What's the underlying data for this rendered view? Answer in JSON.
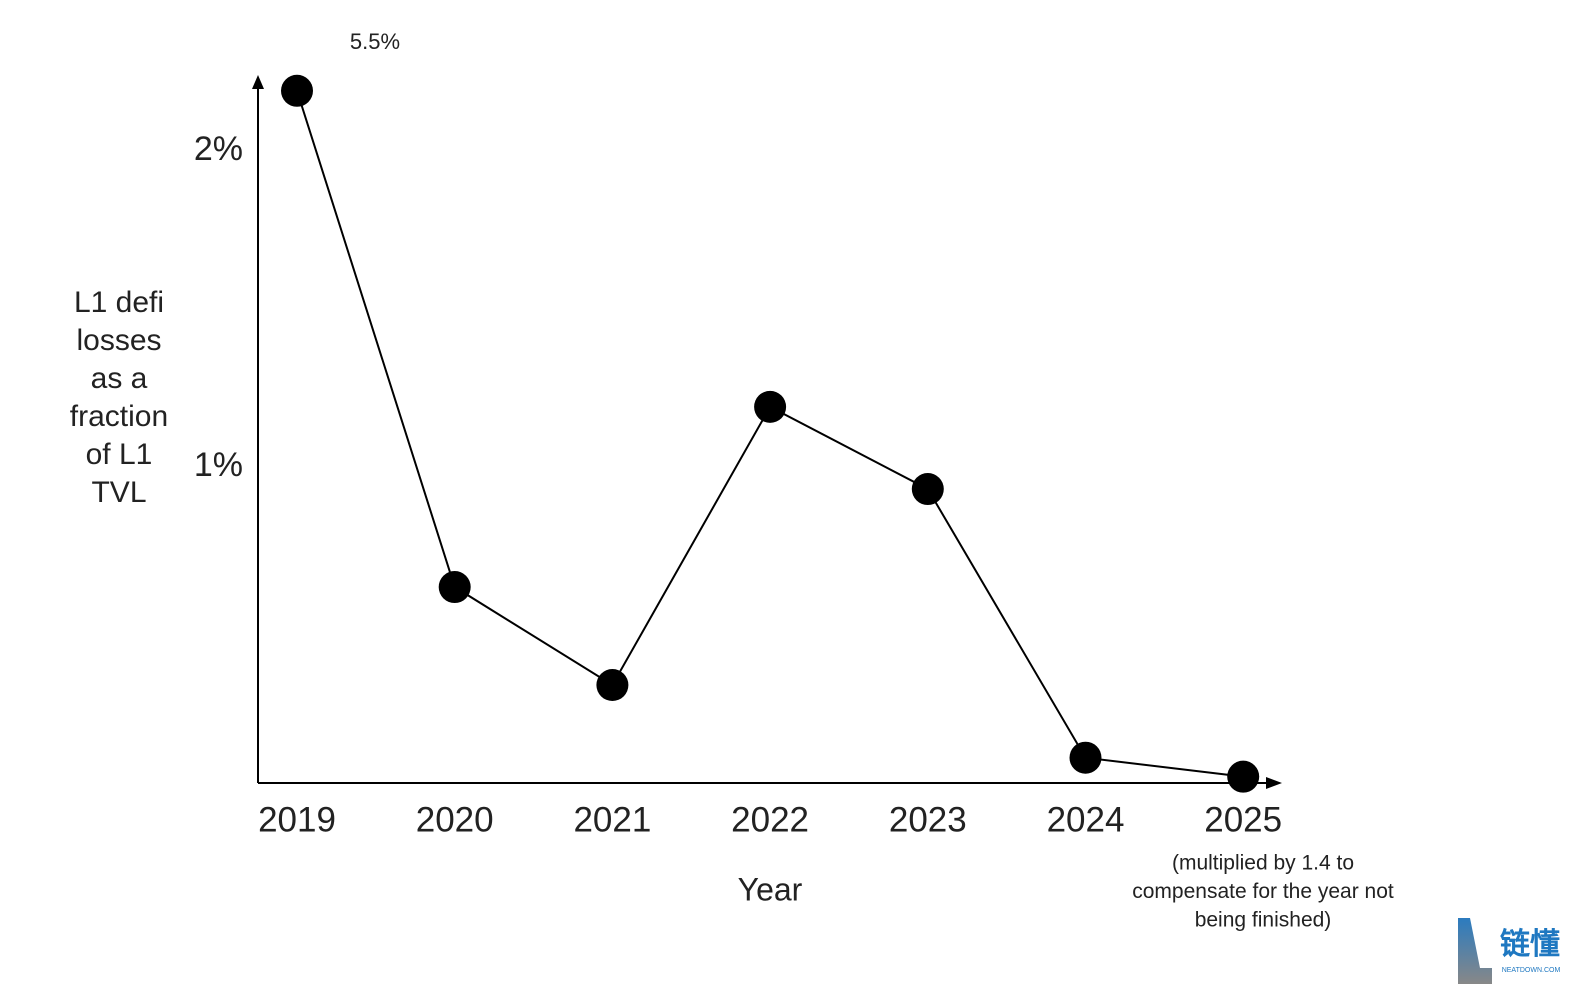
{
  "chart_data": {
    "type": "line",
    "x_label": "Year",
    "y_label": [
      "L1 defi",
      "losses",
      "as a",
      "fraction",
      "of L1",
      "TVL"
    ],
    "annotation": "5.5%",
    "note": [
      "(multiplied by 1.4 to",
      "compensate for the year not",
      "being finished)"
    ],
    "categories": [
      "2019",
      "2020",
      "2021",
      "2022",
      "2023",
      "2024",
      "2025"
    ],
    "values": [
      2.19,
      0.62,
      0.31,
      1.19,
      0.93,
      0.08,
      0.02
    ],
    "color": "#000000",
    "ylim": [
      0,
      2.24
    ],
    "yticks": [
      {
        "value": 1,
        "label": "1%"
      },
      {
        "value": 2,
        "label": "2%"
      }
    ],
    "grid": false
  },
  "watermark": {
    "text": "链懂",
    "subtext": "NEATDOWN.COM"
  }
}
